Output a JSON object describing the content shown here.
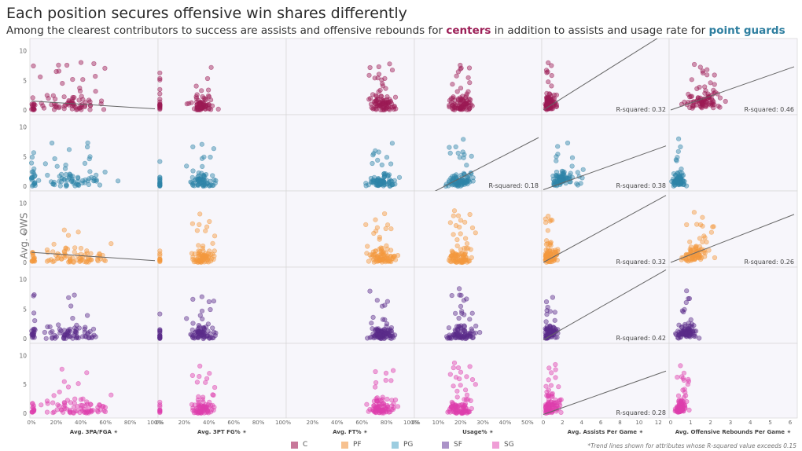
{
  "title": "Each position secures offensive win shares differently",
  "subtitle": {
    "part1": "Among the clearest contributors to success are assists and offensive rebounds for ",
    "highlight1": "centers",
    "part2": " in addition to assists and usage rate for ",
    "highlight2": "point guards"
  },
  "y_axis_label": "Avg. OWS",
  "footnote": "*Trend lines shown for attributes whose R-squared value exceeds 0.15",
  "colors": {
    "C": "#9c1a55",
    "PG": "#2f84a8",
    "PF": "#f39a3f",
    "SF": "#5a2c8a",
    "SG": "#de3fae",
    "trend": "#666666"
  },
  "chart_data": {
    "type": "scatter",
    "rows": [
      "C",
      "PG",
      "PF",
      "SF",
      "SG"
    ],
    "yticks": [
      "0",
      "5",
      "10"
    ],
    "ylim": [
      0,
      11
    ],
    "columns": [
      {
        "label": "Avg. 3PA/FGA",
        "xticks": [
          "0%",
          "20%",
          "40%",
          "60%",
          "80%",
          "100%"
        ],
        "xlim": [
          0,
          1
        ]
      },
      {
        "label": "Avg. 3PT FG%",
        "xticks": [
          "0%",
          "20%",
          "40%",
          "60%",
          "80%",
          "100%"
        ],
        "xlim": [
          0,
          1
        ]
      },
      {
        "label": "Avg. FT%",
        "xticks": [
          "20%",
          "40%",
          "60%",
          "80%",
          "100%"
        ],
        "xlim": [
          0,
          1
        ]
      },
      {
        "label": "Usage%",
        "xticks": [
          "0%",
          "10%",
          "20%",
          "30%",
          "40%",
          "50%"
        ],
        "xlim": [
          0,
          0.55
        ]
      },
      {
        "label": "Avg. Assists Per Game",
        "xticks": [
          "0",
          "2",
          "4",
          "6",
          "8",
          "10",
          "12"
        ],
        "xlim": [
          0,
          12.8
        ]
      },
      {
        "label": "Avg. Offensive Rebounds Per Game",
        "xticks": [
          "0",
          "1",
          "2",
          "3",
          "4",
          "5",
          "6"
        ],
        "xlim": [
          0,
          6.2
        ]
      }
    ],
    "trendlines": [
      {
        "row": "C",
        "col": 0,
        "y0": 1.5,
        "y1": 0.2
      },
      {
        "row": "C",
        "col": 4,
        "y0": 0.0,
        "y1": 13.0,
        "r2": "R-squared: 0.32"
      },
      {
        "row": "C",
        "col": 5,
        "y0": 0.0,
        "y1": 7.3,
        "r2": "R-squared: 0.46"
      },
      {
        "row": "PG",
        "col": 3,
        "y0": -2.5,
        "y1": 8.2,
        "r2": "R-squared: 0.18"
      },
      {
        "row": "PG",
        "col": 4,
        "y0": -0.6,
        "y1": 6.8,
        "r2": "R-squared: 0.38"
      },
      {
        "row": "PF",
        "col": 0,
        "y0": 1.7,
        "y1": 0.3
      },
      {
        "row": "PF",
        "col": 4,
        "y0": 0.0,
        "y1": 11.3,
        "r2": "R-squared: 0.32"
      },
      {
        "row": "PF",
        "col": 5,
        "y0": 0.0,
        "y1": 8.1,
        "r2": "R-squared: 0.26"
      },
      {
        "row": "SF",
        "col": 4,
        "y0": -0.2,
        "y1": 11.6,
        "r2": "R-squared: 0.42"
      },
      {
        "row": "SG",
        "col": 4,
        "y0": -0.2,
        "y1": 7.3,
        "r2": "R-squared: 0.28"
      }
    ],
    "legend": [
      {
        "label": "C",
        "color": "#c8789a"
      },
      {
        "label": "PF",
        "color": "#f7c18f"
      },
      {
        "label": "PG",
        "color": "#9ccde0"
      },
      {
        "label": "SF",
        "color": "#ab93c8"
      },
      {
        "label": "SG",
        "color": "#ef9ed6"
      }
    ]
  }
}
